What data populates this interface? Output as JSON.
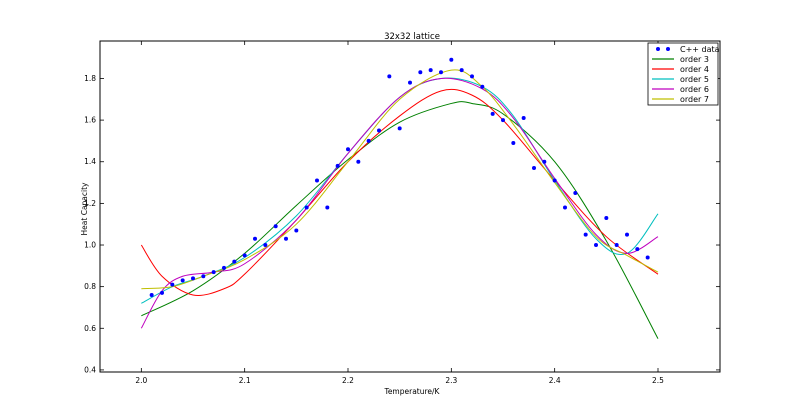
{
  "chart_data": {
    "type": "scatter",
    "title": "32x32 lattice",
    "xlabel": "Temperature/K",
    "ylabel": "Heat Capacity",
    "xlim": [
      1.96,
      2.56
    ],
    "ylim": [
      0.39,
      1.98
    ],
    "xticks": [
      "2.0",
      "2.1",
      "2.2",
      "2.3",
      "2.4",
      "2.5"
    ],
    "yticks": [
      "0.4",
      "0.6",
      "0.8",
      "1.0",
      "1.2",
      "1.4",
      "1.6",
      "1.8"
    ],
    "legend_position": "top-right",
    "grid": false,
    "data_series": {
      "name": "C++ data",
      "color": "#0000ff",
      "x": [
        2.01,
        2.02,
        2.03,
        2.04,
        2.05,
        2.06,
        2.07,
        2.08,
        2.09,
        2.1,
        2.11,
        2.12,
        2.13,
        2.14,
        2.15,
        2.16,
        2.17,
        2.18,
        2.19,
        2.2,
        2.21,
        2.22,
        2.23,
        2.24,
        2.25,
        2.26,
        2.27,
        2.28,
        2.29,
        2.3,
        2.31,
        2.32,
        2.33,
        2.34,
        2.35,
        2.36,
        2.37,
        2.38,
        2.39,
        2.4,
        2.41,
        2.42,
        2.43,
        2.44,
        2.45,
        2.46,
        2.47,
        2.48,
        2.49
      ],
      "y": [
        0.76,
        0.77,
        0.81,
        0.83,
        0.84,
        0.85,
        0.87,
        0.89,
        0.92,
        0.95,
        1.03,
        1.0,
        1.09,
        1.03,
        1.07,
        1.18,
        1.31,
        1.18,
        1.38,
        1.46,
        1.4,
        1.5,
        1.55,
        1.81,
        1.56,
        1.78,
        1.83,
        1.84,
        1.83,
        1.89,
        1.84,
        1.81,
        1.76,
        1.63,
        1.6,
        1.49,
        1.61,
        1.37,
        1.4,
        1.31,
        1.18,
        1.25,
        1.05,
        1.0,
        1.13,
        1.0,
        1.05,
        0.98,
        0.94
      ]
    },
    "series": [
      {
        "name": "order 3",
        "color": "#008000",
        "x": [
          2.0,
          2.05,
          2.1,
          2.15,
          2.2,
          2.25,
          2.3,
          2.32,
          2.35,
          2.4,
          2.45,
          2.5
        ],
        "y": [
          0.66,
          0.78,
          0.96,
          1.19,
          1.41,
          1.59,
          1.68,
          1.68,
          1.63,
          1.4,
          1.02,
          0.55
        ]
      },
      {
        "name": "order 4",
        "color": "#ff0000",
        "x": [
          2.0,
          2.02,
          2.05,
          2.08,
          2.1,
          2.15,
          2.2,
          2.25,
          2.29,
          2.32,
          2.35,
          2.4,
          2.45,
          2.5
        ],
        "y": [
          1.0,
          0.85,
          0.76,
          0.79,
          0.86,
          1.12,
          1.4,
          1.62,
          1.74,
          1.72,
          1.6,
          1.31,
          1.04,
          0.86
        ]
      },
      {
        "name": "order 5",
        "color": "#00bfbf",
        "x": [
          2.0,
          2.03,
          2.06,
          2.1,
          2.15,
          2.2,
          2.25,
          2.29,
          2.33,
          2.36,
          2.4,
          2.44,
          2.47,
          2.5
        ],
        "y": [
          0.72,
          0.8,
          0.85,
          0.94,
          1.14,
          1.44,
          1.71,
          1.8,
          1.76,
          1.62,
          1.31,
          1.03,
          0.96,
          1.15
        ]
      },
      {
        "name": "order 6",
        "color": "#bf00bf",
        "x": [
          2.0,
          2.02,
          2.04,
          2.07,
          2.1,
          2.15,
          2.2,
          2.25,
          2.29,
          2.33,
          2.36,
          2.4,
          2.44,
          2.47,
          2.5
        ],
        "y": [
          0.6,
          0.78,
          0.85,
          0.87,
          0.91,
          1.12,
          1.44,
          1.71,
          1.8,
          1.75,
          1.61,
          1.32,
          1.05,
          0.96,
          1.04
        ]
      },
      {
        "name": "order 7",
        "color": "#bfbf00",
        "x": [
          2.0,
          2.03,
          2.06,
          2.1,
          2.15,
          2.2,
          2.25,
          2.3,
          2.33,
          2.36,
          2.4,
          2.44,
          2.47,
          2.5
        ],
        "y": [
          0.79,
          0.8,
          0.85,
          0.93,
          1.1,
          1.4,
          1.7,
          1.84,
          1.76,
          1.58,
          1.3,
          1.04,
          0.95,
          0.87
        ]
      }
    ]
  }
}
